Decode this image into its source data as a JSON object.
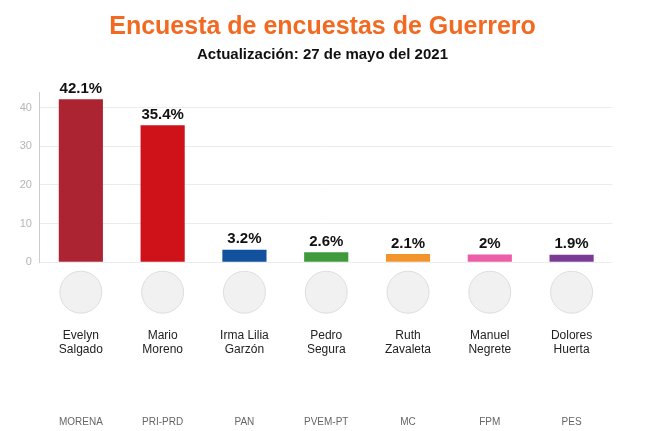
{
  "chart_data": {
    "type": "bar",
    "title": "Encuesta de encuestas de Guerrero",
    "subtitle": "Actualización: 27 de mayo del 2021",
    "categories": [
      "Evelyn Salgado",
      "Mario Moreno",
      "Irma Lilia Garzón",
      "Pedro Segura",
      "Ruth Zavaleta",
      "Manuel Negrete",
      "Dolores Huerta"
    ],
    "parties": [
      "MORENA",
      "PRI-PRD",
      "PAN",
      "PVEM-PT",
      "MC",
      "FPM",
      "PES"
    ],
    "values": [
      42.1,
      35.4,
      3.2,
      2.6,
      2.1,
      2,
      1.9
    ],
    "value_labels": [
      "42.1%",
      "35.4%",
      "3.2%",
      "2.6%",
      "2.1%",
      "2%",
      "1.9%"
    ],
    "colors": [
      "#ac2431",
      "#cf1219",
      "#12519e",
      "#3f9a3c",
      "#f2942c",
      "#ec5ea8",
      "#7b3b95"
    ],
    "data_labels": true,
    "ylim": [
      0,
      44
    ],
    "yticks": [
      0,
      10,
      20,
      30,
      40
    ],
    "grid": true
  }
}
